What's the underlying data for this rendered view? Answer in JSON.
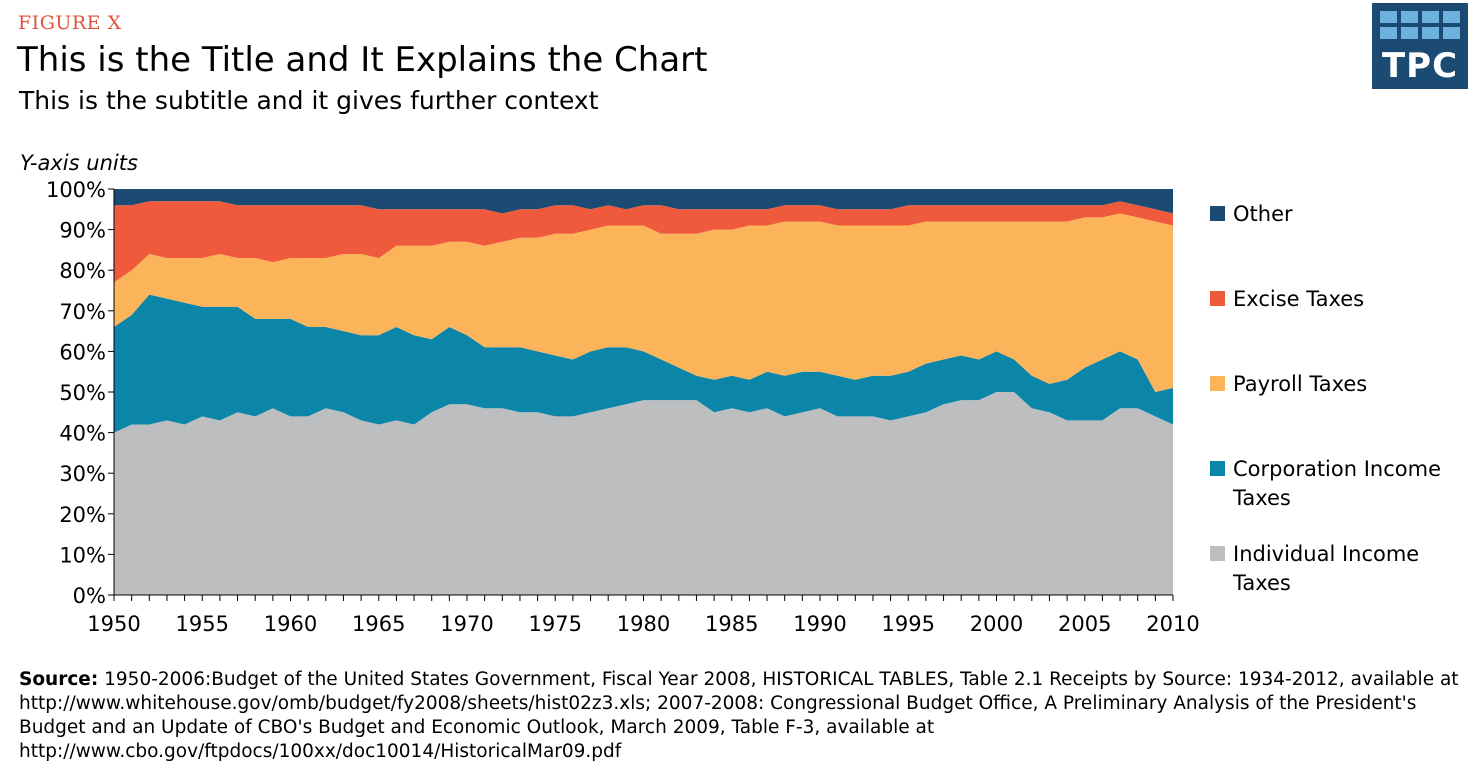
{
  "header": {
    "figure_label": "FIGURE X",
    "title": "This is the Title and It Explains the Chart",
    "subtitle": "This is the subtitle and it gives further context"
  },
  "logo": {
    "text": "TPC",
    "color": "#1b4a73",
    "accent": "#6db2dd"
  },
  "footer": {
    "source_label": "Source:",
    "source_text": " 1950-2006:Budget of the United States Government, Fiscal Year 2008, HISTORICAL TABLES, Table 2.1 Receipts by Source: 1934-2012, available at http://www.whitehouse.gov/omb/budget/fy2008/sheets/hist02z3.xls; 2007-2008: Congressional Budget Office, A Preliminary Analysis of the President's Budget and an Update of CBO's Budget and Economic Outlook, March 2009, Table F-3, available at http://www.cbo.gov/ftpdocs/100xx/doc10014/HistoricalMar09.pdf"
  },
  "chart_data": {
    "type": "area",
    "stacked": true,
    "ylabel": "Y-axis units",
    "xlabel": "",
    "xlim": [
      1950,
      2010
    ],
    "ylim": [
      0,
      100
    ],
    "x_ticks": [
      1950,
      1955,
      1960,
      1965,
      1970,
      1975,
      1980,
      1985,
      1990,
      1995,
      2000,
      2005,
      2010
    ],
    "y_ticks": [
      "0%",
      "10%",
      "20%",
      "30%",
      "40%",
      "50%",
      "60%",
      "70%",
      "80%",
      "90%",
      "100%"
    ],
    "legend_position": "right",
    "x": [
      1950,
      1951,
      1952,
      1953,
      1954,
      1955,
      1956,
      1957,
      1958,
      1959,
      1960,
      1961,
      1962,
      1963,
      1964,
      1965,
      1966,
      1967,
      1968,
      1969,
      1970,
      1971,
      1972,
      1973,
      1974,
      1975,
      1976,
      1977,
      1978,
      1979,
      1980,
      1981,
      1982,
      1983,
      1984,
      1985,
      1986,
      1987,
      1988,
      1989,
      1990,
      1991,
      1992,
      1993,
      1994,
      1995,
      1996,
      1997,
      1998,
      1999,
      2000,
      2001,
      2002,
      2003,
      2004,
      2005,
      2006,
      2007,
      2008,
      2009,
      2010
    ],
    "series": [
      {
        "name": "Individual Income Taxes",
        "color": "#bcbec0",
        "values": [
          40,
          42,
          42,
          43,
          42,
          44,
          43,
          45,
          44,
          46,
          44,
          44,
          46,
          45,
          43,
          42,
          43,
          42,
          45,
          47,
          47,
          46,
          46,
          45,
          45,
          44,
          44,
          45,
          46,
          47,
          48,
          48,
          48,
          48,
          45,
          46,
          45,
          46,
          44,
          45,
          46,
          44,
          44,
          44,
          43,
          44,
          45,
          47,
          48,
          48,
          50,
          50,
          46,
          45,
          43,
          43,
          43,
          46,
          46,
          44,
          42
        ]
      },
      {
        "name": "Corporation Income Taxes",
        "color": "#0b85a8",
        "values": [
          26,
          27,
          32,
          30,
          30,
          27,
          28,
          26,
          24,
          22,
          24,
          22,
          20,
          20,
          21,
          22,
          23,
          22,
          18,
          19,
          17,
          15,
          15,
          16,
          15,
          15,
          14,
          15,
          15,
          14,
          12,
          10,
          8,
          6,
          8,
          8,
          8,
          9,
          10,
          10,
          9,
          10,
          9,
          10,
          11,
          11,
          12,
          11,
          11,
          10,
          10,
          8,
          8,
          7,
          10,
          13,
          15,
          14,
          12,
          6,
          9
        ]
      },
      {
        "name": "Payroll Taxes",
        "color": "#fbb45a",
        "values": [
          11,
          11,
          10,
          10,
          11,
          12,
          13,
          12,
          15,
          14,
          15,
          17,
          17,
          19,
          20,
          19,
          20,
          22,
          23,
          21,
          23,
          25,
          26,
          27,
          28,
          30,
          31,
          30,
          30,
          30,
          31,
          31,
          33,
          35,
          37,
          36,
          38,
          36,
          38,
          37,
          37,
          37,
          38,
          37,
          37,
          36,
          35,
          34,
          33,
          34,
          32,
          34,
          38,
          40,
          39,
          37,
          35,
          34,
          35,
          42,
          40
        ]
      },
      {
        "name": "Excise Taxes",
        "color": "#ef5a3c",
        "values": [
          19,
          16,
          13,
          14,
          14,
          14,
          13,
          13,
          13,
          14,
          13,
          13,
          13,
          12,
          12,
          12,
          9,
          9,
          9,
          8,
          8,
          9,
          7,
          7,
          7,
          7,
          7,
          5,
          5,
          4,
          5,
          7,
          6,
          6,
          5,
          5,
          4,
          4,
          4,
          4,
          4,
          4,
          4,
          4,
          4,
          5,
          4,
          4,
          4,
          4,
          4,
          4,
          4,
          4,
          4,
          3,
          3,
          3,
          3,
          3,
          3
        ]
      },
      {
        "name": "Other",
        "color": "#1b4a73",
        "values": [
          4,
          4,
          3,
          3,
          3,
          3,
          3,
          4,
          4,
          4,
          4,
          4,
          4,
          4,
          4,
          5,
          5,
          5,
          5,
          5,
          5,
          5,
          6,
          5,
          5,
          4,
          4,
          5,
          4,
          5,
          4,
          4,
          5,
          5,
          5,
          5,
          5,
          5,
          4,
          4,
          4,
          5,
          5,
          5,
          5,
          4,
          4,
          4,
          4,
          4,
          4,
          4,
          4,
          4,
          4,
          4,
          4,
          3,
          4,
          5,
          6
        ]
      }
    ]
  }
}
